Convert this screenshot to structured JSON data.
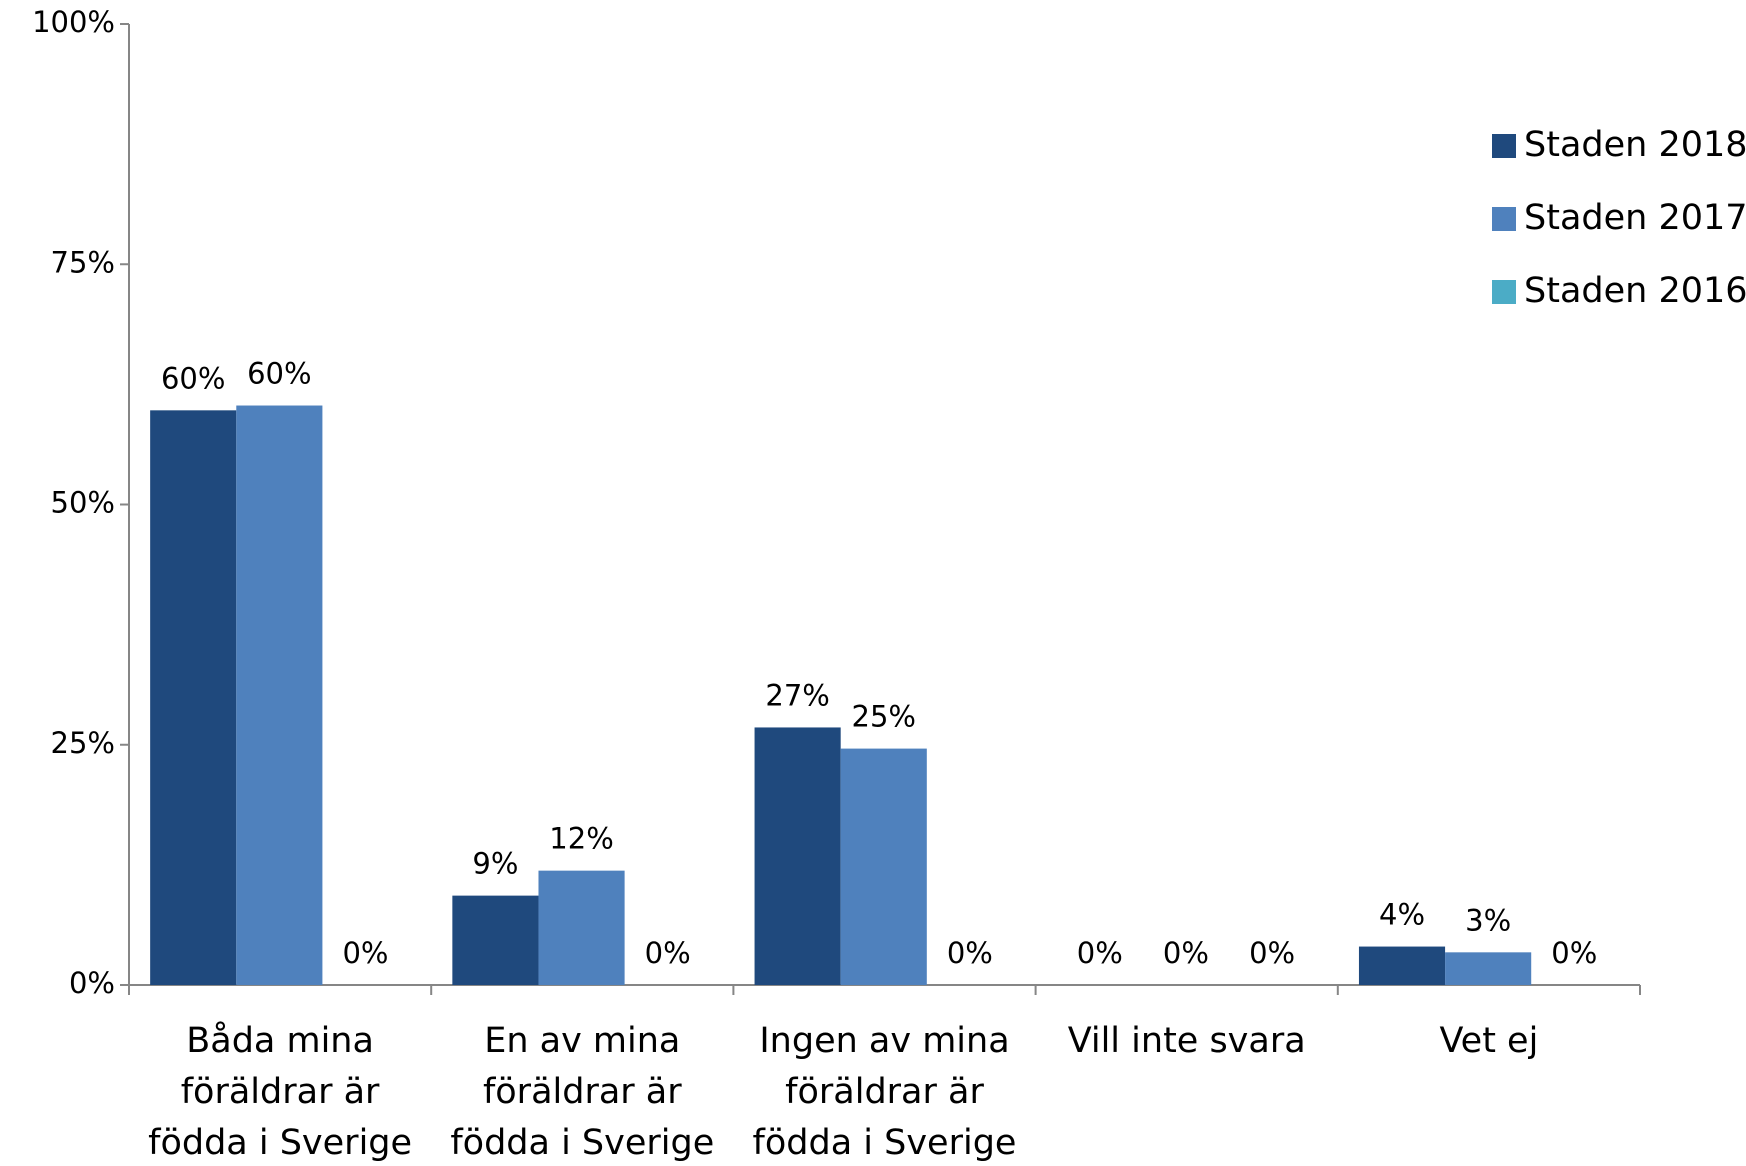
{
  "chart_data": {
    "type": "bar",
    "categories": [
      "Båda mina föräldrar är födda i Sverige",
      "En av mina föräldrar är födda i Sverige",
      "Ingen av mina föräldrar är födda i Sverige",
      "Vill inte svara",
      "Vet ej"
    ],
    "series": [
      {
        "name": "Staden 2018",
        "color": "#1f497d",
        "values": [
          59.8,
          9.3,
          26.8,
          0,
          4.0
        ],
        "value_labels": [
          "60%",
          "9%",
          "27%",
          "0%",
          "4%"
        ]
      },
      {
        "name": "Staden 2017",
        "color": "#4f81bd",
        "values": [
          60.3,
          11.9,
          24.6,
          0,
          3.4
        ],
        "value_labels": [
          "60%",
          "12%",
          "25%",
          "0%",
          "3%"
        ]
      },
      {
        "name": "Staden 2016",
        "color": "#4bacc6",
        "values": [
          0,
          0,
          0,
          0,
          0
        ],
        "value_labels": [
          "0%",
          "0%",
          "0%",
          "0%",
          "0%"
        ]
      }
    ],
    "ylim": [
      0,
      100
    ],
    "yticks": [
      {
        "value": 0,
        "label": "0%"
      },
      {
        "value": 25,
        "label": "25%"
      },
      {
        "value": 50,
        "label": "50%"
      },
      {
        "value": 75,
        "label": "75%"
      },
      {
        "value": 100,
        "label": "100%"
      }
    ],
    "grid": false,
    "legend": "right"
  }
}
